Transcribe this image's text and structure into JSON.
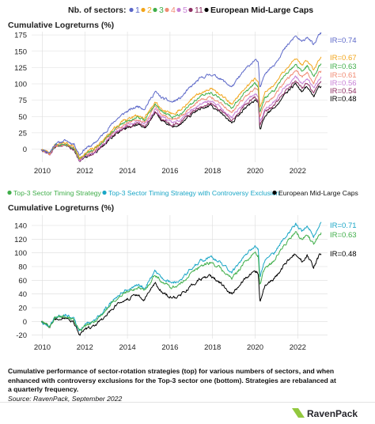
{
  "colors": {
    "sector_1": "#5b67c8",
    "sector_2": "#f2a51a",
    "sector_3": "#3fae49",
    "sector_4": "#f08b73",
    "sector_5": "#c77fd6",
    "sector_11": "#8e2e63",
    "benchmark": "#000000",
    "top3": "#3fae49",
    "top3_ce": "#1aa6c6",
    "axis_text": "#222222",
    "gridline": "#dcdcdc",
    "logo_green": "#92c83e",
    "logo_dark": "#26262c"
  },
  "chart_data": [
    {
      "type": "line",
      "title": "Cumulative Logreturns (%)",
      "legend_prefix": "Nb. of sectors:",
      "legend_placement": "top",
      "xlim": [
        2009.5,
        2023.4
      ],
      "ylim": [
        -20,
        180
      ],
      "xticks": [
        "2010",
        "2012",
        "2014",
        "2016",
        "2018",
        "2020",
        "2022"
      ],
      "yticks": [
        "0",
        "25",
        "50",
        "75",
        "100",
        "125",
        "150",
        "175"
      ],
      "series": [
        {
          "name": "1",
          "color": "sector_1",
          "final": 178,
          "label": "IR=0.74"
        },
        {
          "name": "2",
          "color": "sector_2",
          "final": 140,
          "label": "IR=0.67"
        },
        {
          "name": "3",
          "color": "sector_3",
          "final": 130,
          "label": "IR=0.63"
        },
        {
          "name": "4",
          "color": "sector_4",
          "final": 120,
          "label": "IR=0.61"
        },
        {
          "name": "5",
          "color": "sector_5",
          "final": 110,
          "label": "IR=0.56"
        },
        {
          "name": "11",
          "color": "sector_11",
          "final": 103,
          "label": "IR=0.54"
        },
        {
          "name": "European Mid-Large Caps",
          "color": "benchmark",
          "final": 97,
          "label": "IR=0.48"
        }
      ]
    },
    {
      "type": "line",
      "title": "Cumulative Logreturns (%)",
      "legend_placement": "top",
      "xlim": [
        2009.5,
        2023.4
      ],
      "ylim": [
        -25,
        155
      ],
      "xticks": [
        "2010",
        "2012",
        "2014",
        "2016",
        "2018",
        "2020",
        "2022"
      ],
      "yticks": [
        "-20",
        "0",
        "20",
        "40",
        "60",
        "80",
        "100",
        "120",
        "140"
      ],
      "series": [
        {
          "name": "Top-3 Sector Timing Strategy",
          "color": "top3",
          "final": 130,
          "label": "IR=0.63"
        },
        {
          "name": "Top-3 Sector Timing Strategy with Controversy Exclusion",
          "color": "top3_ce",
          "final": 143,
          "label": "IR=0.71"
        },
        {
          "name": "European Mid-Large Caps",
          "color": "benchmark",
          "final": 97,
          "label": "IR=0.48"
        }
      ]
    }
  ],
  "caption": {
    "text": "Cumulative performance of sector-rotation strategies (top) for various numbers of sectors, and when enhanced with controversy exclusions for the Top-3 sector one (bottom). Strategies are rebalanced at a quarterly frequency.",
    "source": "Source: RavenPack, September 2022"
  },
  "brand": "RavenPack"
}
